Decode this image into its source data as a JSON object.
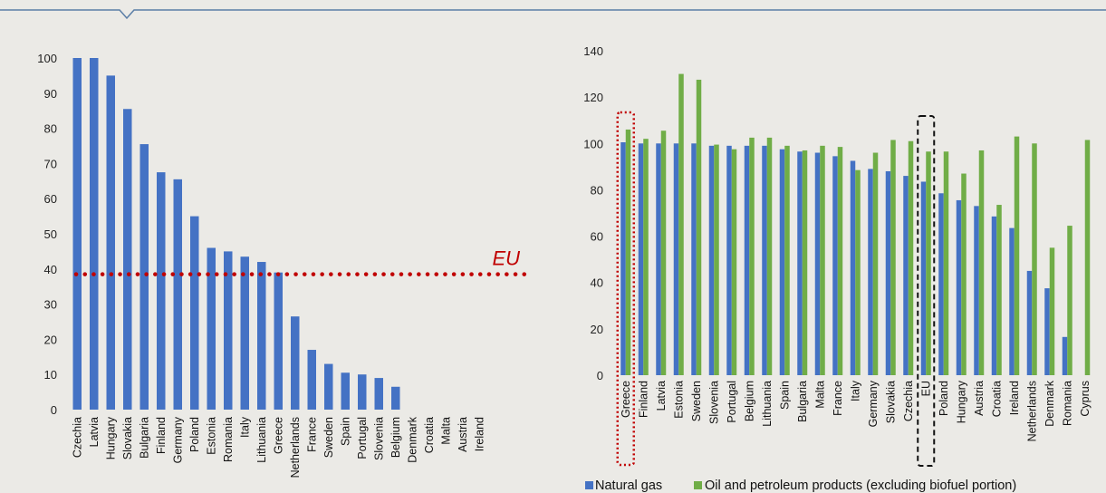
{
  "colors": {
    "natural_gas": "#4472c4",
    "oil": "#70ad47",
    "eu_line": "#c00000",
    "top_rule": "#5b7ea6"
  },
  "chart_data": [
    {
      "type": "bar",
      "categories": [
        "Czechia",
        "Latvia",
        "Hungary",
        "Slovakia",
        "Bulgaria",
        "Finland",
        "Germany",
        "Poland",
        "Estonia",
        "Romania",
        "Italy",
        "Lithuania",
        "Greece",
        "Netherlands",
        "France",
        "Sweden",
        "Spain",
        "Portugal",
        "Slovenia",
        "Belgium",
        "Denmark",
        "Croatia",
        "Malta",
        "Austria",
        "Ireland"
      ],
      "values": [
        100,
        100,
        95,
        85.5,
        75.5,
        67.5,
        65.5,
        55,
        46,
        45,
        43.5,
        42,
        39,
        26.5,
        17,
        13,
        10.5,
        10,
        9,
        6.5,
        0,
        0,
        0,
        0,
        0
      ],
      "ylim": [
        0,
        100
      ],
      "yticks": [
        "0",
        "10",
        "20",
        "30",
        "40",
        "50",
        "60",
        "70",
        "80",
        "90",
        "100"
      ],
      "reference_line": {
        "label": "EU",
        "value": 38.5
      },
      "grid": false
    },
    {
      "type": "bar",
      "categories": [
        "Greece",
        "Finland",
        "Latvia",
        "Estonia",
        "Sweden",
        "Slovenia",
        "Portugal",
        "Belgium",
        "Lithuania",
        "Spain",
        "Bulgaria",
        "Malta",
        "France",
        "Italy",
        "Germany",
        "Slovakia",
        "Czechia",
        "EU",
        "Poland",
        "Hungary",
        "Austria",
        "Croatia",
        "Ireland",
        "Netherlands",
        "Denmark",
        "Romania",
        "Cyprus"
      ],
      "series": [
        {
          "name": "Natural gas",
          "values": [
            100.5,
            100,
            100,
            100,
            100,
            99,
            99,
            99,
            99,
            97.5,
            96.5,
            96,
            94.5,
            92.5,
            89,
            88,
            86,
            83.5,
            78.5,
            75.5,
            73,
            68.5,
            63.5,
            45,
            37.5,
            16.5,
            0
          ]
        },
        {
          "name": "Oil and petroleum products (excluding biofuel portion)",
          "values": [
            106,
            102,
            105.5,
            130,
            127.5,
            99.5,
            97.5,
            102.5,
            102.5,
            99,
            97,
            99,
            98.5,
            88.5,
            96,
            101.5,
            101,
            96.5,
            96.5,
            87,
            97,
            73.5,
            103,
            100,
            55,
            64.5,
            101.5
          ]
        }
      ],
      "ylim": [
        0,
        140
      ],
      "yticks": [
        "0",
        "20",
        "40",
        "60",
        "80",
        "100",
        "120",
        "140"
      ],
      "highlighted": [
        "Greece",
        "EU"
      ],
      "legend": "bottom",
      "grid": false
    }
  ]
}
